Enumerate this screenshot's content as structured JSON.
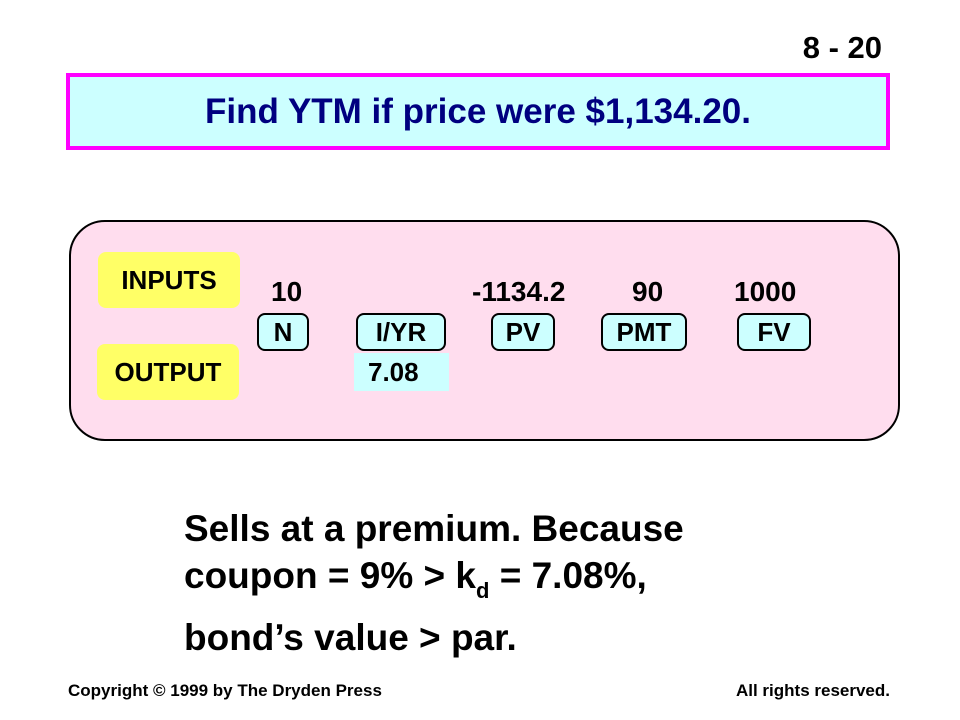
{
  "slide_number": "8 - 20",
  "title": "Find YTM if price were $1,134.20.",
  "calculator": {
    "inputs_label": "INPUTS",
    "output_label": "OUTPUT",
    "keys": [
      {
        "label": "N",
        "input": "10"
      },
      {
        "label": "I/YR",
        "input": ""
      },
      {
        "label": "PV",
        "input": "-1134.2"
      },
      {
        "label": "PMT",
        "input": "90"
      },
      {
        "label": "FV",
        "input": "1000"
      }
    ],
    "output_value": "7.08"
  },
  "conclusion": {
    "line1": "Sells at a premium.  Because",
    "line2_before_sub": "coupon = 9% > k",
    "line2_sub": "d",
    "line2_after_sub": " = 7.08%,",
    "line3": "bond’s value > par."
  },
  "footer": {
    "left": "Copyright © 1999 by The Dryden Press",
    "right": "All rights reserved."
  },
  "colors": {
    "title_bg": "#ccffff",
    "title_border": "#ff00ff",
    "title_text": "#000080",
    "panel_bg": "#ffddee",
    "label_bg": "#ffff66",
    "key_bg": "#ccffff"
  }
}
